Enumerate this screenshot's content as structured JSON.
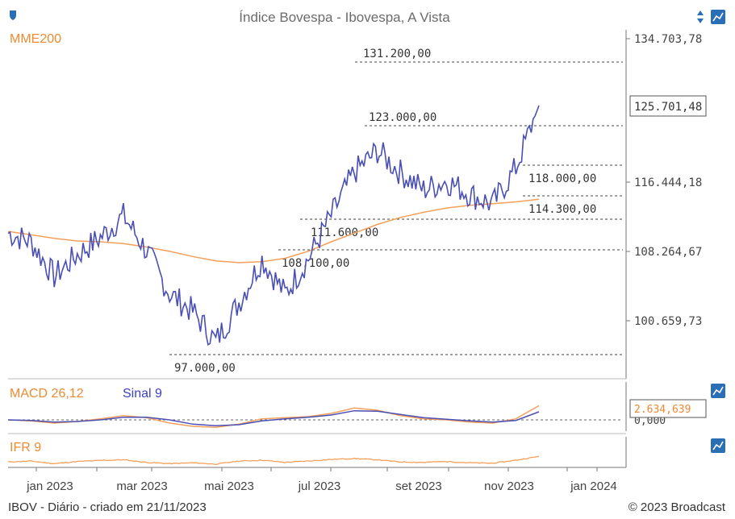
{
  "header": {
    "title": "Índice Bovespa - Ibovespa, A Vista"
  },
  "footer": {
    "left": "IBOV - Diário - criado em 21/11/2023",
    "right": "© 2023 Broadcast"
  },
  "colors": {
    "price": "#4a4fb5",
    "mme": "#f5a05a",
    "orange_text": "#f08a30",
    "blue_text": "#3c3fc8",
    "grid": "#444444",
    "axis": "#777777",
    "icon": "#2a6fb5"
  },
  "icons": {
    "top_left": "shield-icon",
    "top_right_arrows": "up-down-arrows-icon",
    "top_right_settings": "chart-settings-icon",
    "macd_settings": "chart-settings-icon",
    "ifr_settings": "chart-settings-icon"
  },
  "chart_data": [
    {
      "type": "line",
      "title": "Índice Bovespa - Ibovespa, A Vista",
      "series": [
        {
          "name": "MME200"
        }
      ],
      "x": [
        "2022-12-01",
        "2022-12-15",
        "2023-01-05",
        "2023-01-20",
        "2023-02-05",
        "2023-02-20",
        "2023-03-05",
        "2023-03-20",
        "2023-04-05",
        "2023-04-20",
        "2023-05-05",
        "2023-05-20",
        "2023-06-05",
        "2023-06-20",
        "2023-07-05",
        "2023-07-20",
        "2023-08-05",
        "2023-08-20",
        "2023-09-05",
        "2023-09-20",
        "2023-10-05",
        "2023-10-20",
        "2023-11-05",
        "2023-11-20"
      ],
      "price": [
        111000,
        110000,
        106000,
        108500,
        110500,
        113000,
        109000,
        104000,
        102000,
        98500,
        103000,
        108000,
        104000,
        108000,
        113000,
        118000,
        120500,
        118000,
        116000,
        117000,
        115500,
        114300,
        118500,
        125701.48
      ],
      "mme200": [
        111200,
        110800,
        110400,
        110100,
        110000,
        109800,
        109400,
        108900,
        108300,
        107800,
        107600,
        107700,
        108100,
        108900,
        110000,
        111000,
        112000,
        112800,
        113400,
        113900,
        114200,
        114400,
        114600,
        114900
      ],
      "ylim": [
        93000,
        137000
      ],
      "y_ticks": [
        "134.703,78",
        "125.701,48",
        "116.444,18",
        "108.264,67",
        "100.659,73"
      ],
      "x_ticks": [
        "jan 2023",
        "mar 2023",
        "mai 2023",
        "jul 2023",
        "set 2023",
        "nov 2023",
        "jan 2024"
      ],
      "levels": [
        "131.200,00",
        "123.000,00",
        "118.000,00",
        "114.300,00",
        "111.600,00",
        "108.100,00",
        "97.000,00"
      ],
      "current_value_box": "125.701,48",
      "legend": "top-left",
      "grid": false
    },
    {
      "type": "line",
      "title": "MACD 26,12",
      "series": [
        {
          "name": "MACD 26,12"
        },
        {
          "name": "Sinal 9"
        }
      ],
      "macd": [
        0,
        -200,
        -600,
        -300,
        200,
        800,
        400,
        -600,
        -1200,
        -1400,
        -800,
        200,
        400,
        600,
        1200,
        2200,
        1800,
        800,
        200,
        0,
        -400,
        -600,
        200,
        2634.639
      ],
      "signal": [
        0,
        -100,
        -400,
        -300,
        0,
        500,
        500,
        0,
        -800,
        -1100,
        -900,
        -200,
        200,
        500,
        900,
        1700,
        1600,
        1000,
        400,
        100,
        -200,
        -400,
        -100,
        1500
      ],
      "y_ticks": [
        "0,000"
      ],
      "current_value_box": "2.634,639"
    },
    {
      "type": "line",
      "title": "IFR 9",
      "series": [
        {
          "name": "IFR 9"
        }
      ],
      "ifr": [
        48,
        52,
        40,
        50,
        55,
        58,
        46,
        40,
        44,
        38,
        52,
        56,
        46,
        52,
        60,
        64,
        58,
        48,
        46,
        50,
        44,
        42,
        56,
        74
      ]
    }
  ]
}
